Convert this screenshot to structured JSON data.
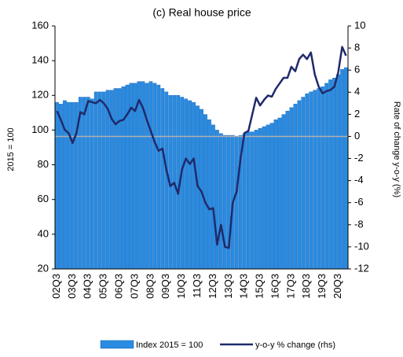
{
  "chart_data": {
    "type": "bar_line",
    "title": "(c) Real house price",
    "y_label": "2015 = 100",
    "y2_label": "Rate of change y-o-y (%)",
    "categories": [
      "02Q3",
      null,
      null,
      null,
      "03Q3",
      null,
      null,
      null,
      "04Q3",
      null,
      null,
      null,
      "05Q3",
      null,
      null,
      null,
      "06Q3",
      null,
      null,
      null,
      "07Q3",
      null,
      null,
      null,
      "08Q3",
      null,
      null,
      null,
      "09Q3",
      null,
      null,
      null,
      "10Q3",
      null,
      null,
      null,
      "11Q3",
      null,
      null,
      null,
      "12Q3",
      null,
      null,
      null,
      "13Q3",
      null,
      null,
      null,
      "14Q3",
      null,
      null,
      null,
      "15Q3",
      null,
      null,
      null,
      "16Q3",
      null,
      null,
      null,
      "17Q3",
      null,
      null,
      null,
      "18Q3",
      null,
      null,
      null,
      "19Q3",
      null,
      null,
      null,
      "20Q3",
      null,
      null
    ],
    "series": [
      {
        "name": "Index 2015 = 100",
        "type": "bar",
        "color": "#2a8be0",
        "values": [
          116,
          115,
          117,
          116,
          116,
          116,
          119,
          119,
          119,
          118,
          122,
          122,
          122,
          123,
          123,
          124,
          124,
          125,
          126,
          127,
          127,
          128,
          128,
          127,
          128,
          127,
          126,
          124,
          122,
          120,
          120,
          120,
          119,
          118,
          117,
          116,
          114,
          112,
          109,
          106,
          103,
          100,
          98,
          97,
          97,
          97,
          96,
          97,
          98,
          99,
          99,
          100,
          101,
          102,
          103,
          104,
          106,
          107,
          109,
          111,
          113,
          115,
          117,
          119,
          121,
          122,
          123,
          124,
          125,
          127,
          129,
          130,
          132,
          135,
          136
        ]
      },
      {
        "name": "y-o-y % change (rhs)",
        "type": "line",
        "axis": "y2",
        "color": "#1f2a6b",
        "values": [
          2.3,
          1.5,
          0.6,
          0.3,
          -0.6,
          0.3,
          2.2,
          2.0,
          3.2,
          3.1,
          3.0,
          3.3,
          3.0,
          2.5,
          1.6,
          1.1,
          1.4,
          1.5,
          2.0,
          2.6,
          2.3,
          3.3,
          2.6,
          1.5,
          0.5,
          -0.5,
          -1.3,
          -1.1,
          -3.0,
          -4.5,
          -4.2,
          -5.2,
          -3.0,
          -2.0,
          -2.5,
          -2.0,
          -4.5,
          -5.0,
          -6.0,
          -6.6,
          -6.5,
          -9.8,
          -8.0,
          -10.0,
          -10.1,
          -6.0,
          -5.0,
          -2.0,
          0.3,
          0.5,
          2.0,
          3.5,
          2.8,
          3.3,
          3.7,
          3.6,
          4.3,
          4.8,
          5.3,
          5.3,
          6.3,
          5.9,
          7.0,
          7.4,
          7.0,
          7.6,
          5.6,
          4.5,
          3.9,
          4.1,
          4.2,
          4.5,
          5.8,
          8.1,
          7.3
        ]
      }
    ],
    "ylim": [
      20,
      160
    ],
    "yticks": [
      20,
      40,
      60,
      80,
      100,
      120,
      140,
      160
    ],
    "y2lim": [
      -12,
      10
    ],
    "y2ticks": [
      -12,
      -10,
      -8,
      -6,
      -4,
      -2,
      0,
      2,
      4,
      6,
      8,
      10
    ],
    "legend": "bottom"
  }
}
